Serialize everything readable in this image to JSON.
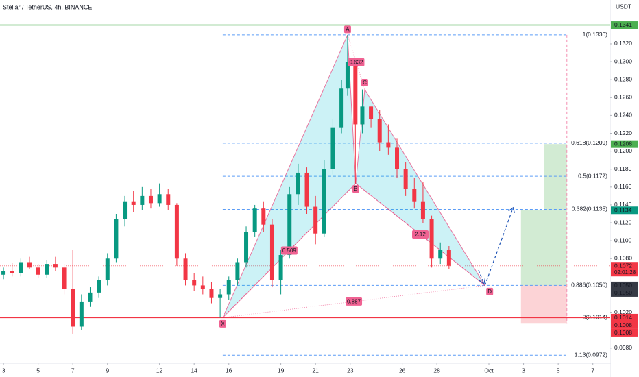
{
  "chart_data": {
    "type": "candlestick",
    "title": "Stellar / TetherUS, 4h, BINANCE",
    "currency": "USDT",
    "up_color": "#089981",
    "down_color": "#f23645",
    "xlim": [
      2.8,
      38.0
    ],
    "ylim": [
      0.0963,
      0.1369
    ],
    "grid": false,
    "xticks": [
      3,
      5,
      7,
      9,
      12,
      14,
      16,
      19,
      21,
      23,
      26,
      28,
      {
        "value": 31,
        "label": "Oct"
      },
      {
        "value": 33,
        "label": "3"
      },
      {
        "value": 35,
        "label": "5"
      },
      {
        "value": 37,
        "label": "7"
      }
    ],
    "yticks": [
      {
        "value": 0.132,
        "label": "0.1320"
      },
      {
        "value": 0.13,
        "label": "0.1300"
      },
      {
        "value": 0.128,
        "label": "0.1280"
      },
      {
        "value": 0.126,
        "label": "0.1260"
      },
      {
        "value": 0.124,
        "label": "0.1240"
      },
      {
        "value": 0.122,
        "label": "0.1220"
      },
      {
        "value": 0.12,
        "label": "0.1200"
      },
      {
        "value": 0.118,
        "label": "0.1180"
      },
      {
        "value": 0.116,
        "label": "0.1160"
      },
      {
        "value": 0.114,
        "label": "0.1140"
      },
      {
        "value": 0.112,
        "label": "0.1120"
      },
      {
        "value": 0.11,
        "label": "0.1100"
      },
      {
        "value": 0.108,
        "label": "0.1080"
      },
      {
        "value": 0.102,
        "label": "0.1020"
      },
      {
        "value": 0.098,
        "label": "0.0980"
      }
    ],
    "x": [
      3.0,
      3.5,
      4.0,
      4.5,
      5.0,
      5.5,
      6.0,
      6.5,
      7.0,
      7.5,
      8.0,
      8.5,
      9.0,
      9.5,
      10.0,
      10.5,
      11.0,
      11.5,
      12.0,
      12.5,
      13.0,
      13.5,
      14.0,
      14.5,
      15.0,
      15.5,
      16.0,
      16.5,
      17.0,
      17.5,
      18.0,
      18.5,
      19.0,
      19.5,
      20.0,
      20.5,
      21.0,
      21.5,
      22.0,
      22.5,
      22.85,
      23.3,
      23.7,
      24.2,
      24.7,
      25.2,
      25.7,
      26.2,
      26.7,
      27.2,
      27.7,
      28.2,
      28.7
    ],
    "open": [
      0.1062,
      0.1066,
      0.1064,
      0.1076,
      0.107,
      0.1062,
      0.1074,
      0.107,
      0.1046,
      0.1004,
      0.1032,
      0.1042,
      0.1056,
      0.108,
      0.1124,
      0.1144,
      0.114,
      0.115,
      0.1142,
      0.1152,
      0.114,
      0.108,
      0.1056,
      0.105,
      0.1046,
      0.1036,
      0.104,
      0.1056,
      0.1076,
      0.111,
      0.1136,
      0.1118,
      0.1056,
      0.1084,
      0.1152,
      0.1176,
      0.1138,
      0.1108,
      0.118,
      0.1226,
      0.127,
      0.13,
      0.123,
      0.125,
      0.1236,
      0.121,
      0.1204,
      0.118,
      0.1158,
      0.1144,
      0.1124,
      0.108,
      0.109
    ],
    "high": [
      0.107,
      0.1075,
      0.108,
      0.1082,
      0.1074,
      0.1078,
      0.1082,
      0.1074,
      0.109,
      0.104,
      0.1048,
      0.106,
      0.1086,
      0.113,
      0.115,
      0.1156,
      0.116,
      0.1158,
      0.1164,
      0.1158,
      0.1142,
      0.1086,
      0.1064,
      0.106,
      0.1054,
      0.1046,
      0.106,
      0.108,
      0.1116,
      0.114,
      0.1144,
      0.1124,
      0.109,
      0.116,
      0.1186,
      0.1182,
      0.115,
      0.119,
      0.1236,
      0.128,
      0.133,
      0.1304,
      0.1269,
      0.125,
      0.1246,
      0.123,
      0.1214,
      0.1188,
      0.117,
      0.1166,
      0.1128,
      0.1098,
      0.1094
    ],
    "low": [
      0.1057,
      0.106,
      0.106,
      0.1068,
      0.1058,
      0.1058,
      0.1066,
      0.104,
      0.0996,
      0.1,
      0.1026,
      0.1036,
      0.105,
      0.1076,
      0.1116,
      0.1132,
      0.1134,
      0.1136,
      0.1138,
      0.1134,
      0.1072,
      0.105,
      0.1044,
      0.104,
      0.103,
      0.1014,
      0.1034,
      0.105,
      0.107,
      0.1104,
      0.111,
      0.1048,
      0.104,
      0.108,
      0.114,
      0.113,
      0.1096,
      0.1104,
      0.1174,
      0.122,
      0.1262,
      0.1164,
      0.122,
      0.1226,
      0.12,
      0.1196,
      0.117,
      0.115,
      0.1136,
      0.112,
      0.107,
      0.1074,
      0.1068
    ],
    "close": [
      0.1066,
      0.1064,
      0.1076,
      0.107,
      0.1062,
      0.1074,
      0.107,
      0.1046,
      0.1004,
      0.1032,
      0.1042,
      0.1056,
      0.108,
      0.1124,
      0.1144,
      0.114,
      0.115,
      0.1142,
      0.1152,
      0.114,
      0.108,
      0.1056,
      0.105,
      0.1046,
      0.1036,
      0.104,
      0.1056,
      0.1076,
      0.111,
      0.1136,
      0.1118,
      0.1056,
      0.1084,
      0.1152,
      0.1176,
      0.1138,
      0.1108,
      0.118,
      0.1226,
      0.127,
      0.13,
      0.123,
      0.125,
      0.1236,
      0.121,
      0.1204,
      0.118,
      0.1158,
      0.1144,
      0.1124,
      0.108,
      0.109,
      0.1072
    ],
    "levels": [
      {
        "value": 0.1341,
        "color": "#4caf50"
      },
      {
        "value": 0.1014,
        "color": "#f23645"
      }
    ],
    "current_price": 0.1072,
    "fib": {
      "start": 15.65,
      "end": 35.5,
      "color": "#5b9cf6",
      "levels": [
        {
          "value": 0.133,
          "label": "1(0.1330)"
        },
        {
          "value": 0.1209,
          "label": "0.618(0.1209)"
        },
        {
          "value": 0.1172,
          "label": "0.5(0.1172)"
        },
        {
          "value": 0.1135,
          "label": "0.382(0.1135)"
        },
        {
          "value": 0.105,
          "label": "0.886(0.1050)"
        },
        {
          "value": 0.1014,
          "label": "0(0.1014)"
        },
        {
          "value": 0.0972,
          "label": "1.13(0.0972)"
        }
      ]
    },
    "pattern": {
      "color": "#e91e63",
      "points": [
        {
          "label": "X",
          "x": 15.65,
          "y": 0.1014
        },
        {
          "label": "A",
          "x": 22.85,
          "y": 0.133
        },
        {
          "label": "B",
          "x": 23.32,
          "y": 0.1164
        },
        {
          "label": "C",
          "x": 23.84,
          "y": 0.1269
        },
        {
          "label": "D",
          "x": 30.77,
          "y": 0.105
        }
      ],
      "ratios": [
        {
          "from": 0,
          "to": 2,
          "label": "0.509"
        },
        {
          "from": 1,
          "to": 3,
          "label": "0.632"
        },
        {
          "from": 2,
          "to": 4,
          "label": "2.12"
        },
        {
          "from": 0,
          "to": 4,
          "label": "0.887"
        }
      ]
    },
    "arrows": [
      {
        "x": [
          30.77,
          32.4
        ],
        "y": [
          0.105,
          0.1137
        ]
      },
      {
        "x": [
          30.4,
          30.72
        ],
        "y": [
          0.1067,
          0.1052
        ]
      }
    ],
    "position": {
      "x": [
        32.85,
        34.2,
        35.5
      ],
      "entry": 0.105,
      "targets": [
        0.1134,
        0.1208
      ],
      "stop": 0.1008
    },
    "price_tags": [
      {
        "value": 0.1341,
        "label": "0.1341",
        "color": "#4caf50"
      },
      {
        "value": 0.1208,
        "label": "0.1208",
        "color": "#4caf50"
      },
      {
        "value": 0.1134,
        "label": "0.1134",
        "color": "#089981"
      },
      {
        "value": 0.1072,
        "label": "0.1072",
        "sub": "02:01:28",
        "color": "#f23645"
      },
      {
        "value": 0.105,
        "label": "0.1050",
        "color": "#363a45"
      },
      {
        "value": 0.105,
        "label": "0.1050",
        "color": "#363a45"
      },
      {
        "value": 0.1014,
        "label": "0.1014",
        "color": "#f23645"
      },
      {
        "value": 0.1008,
        "label": "0.1008",
        "color": "#f23645"
      },
      {
        "value": 0.1008,
        "label": "0.1008",
        "color": "#f23645"
      }
    ]
  }
}
